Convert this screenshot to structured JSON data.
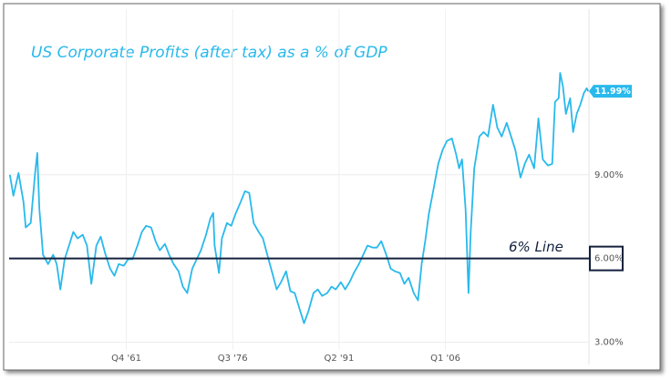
{
  "chart_data": {
    "type": "line",
    "title": "US Corporate Profits (after tax) as a % of GDP",
    "color": "#29b9ec",
    "x": [
      1945.6,
      1946.1,
      1946.8,
      1947.5,
      1947.8,
      1948.5,
      1949.1,
      1949.4,
      1949.7,
      1950.2,
      1950.9,
      1951.6,
      1952.1,
      1952.6,
      1953.2,
      1953.8,
      1954.4,
      1955.0,
      1955.7,
      1956.3,
      1956.9,
      1957.6,
      1958.2,
      1958.8,
      1959.5,
      1960.1,
      1960.7,
      1961.4,
      1962.0,
      1962.6,
      1963.3,
      1963.9,
      1964.5,
      1965.2,
      1965.8,
      1966.4,
      1967.1,
      1967.7,
      1968.3,
      1969.0,
      1969.6,
      1970.2,
      1970.9,
      1971.5,
      1972.1,
      1972.8,
      1973.4,
      1973.8,
      1974.0,
      1974.6,
      1975.0,
      1975.7,
      1976.3,
      1976.9,
      1977.6,
      1978.2,
      1978.8,
      1979.4,
      1980.1,
      1980.7,
      1981.3,
      1982.0,
      1982.6,
      1983.2,
      1983.9,
      1984.5,
      1985.1,
      1985.8,
      1986.4,
      1987.0,
      1987.7,
      1988.3,
      1988.9,
      1989.6,
      1990.2,
      1990.8,
      1991.5,
      1992.1,
      1992.7,
      1993.3,
      1994.0,
      1994.6,
      1995.2,
      1995.9,
      1996.5,
      1997.1,
      1997.8,
      1998.4,
      1999.0,
      1999.7,
      2000.3,
      2000.9,
      2001.6,
      2002.2,
      2002.7,
      2003.2,
      2003.7,
      2004.3,
      2005.0,
      2005.6,
      2006.2,
      2006.9,
      2007.5,
      2007.9,
      2008.3,
      2008.8,
      2009.2,
      2009.5,
      2010.0,
      2010.7,
      2011.3,
      2011.9,
      2012.6,
      2013.2,
      2013.8,
      2014.5,
      2015.1,
      2015.7,
      2016.4,
      2017.0,
      2017.6,
      2018.3,
      2018.9,
      2019.5,
      2020.2,
      2020.8,
      2021.2,
      2021.7,
      2021.9,
      2022.3,
      2022.7,
      2023.3,
      2023.7,
      2024.2,
      2024.7,
      2025.2,
      2025.6,
      2025.8
    ],
    "values": [
      9.0,
      8.25,
      9.06,
      8.02,
      7.11,
      7.27,
      9.06,
      9.78,
      7.76,
      6.13,
      5.8,
      6.13,
      5.8,
      4.89,
      5.97,
      6.46,
      6.95,
      6.72,
      6.85,
      6.46,
      5.09,
      6.46,
      6.78,
      6.2,
      5.64,
      5.38,
      5.8,
      5.74,
      5.97,
      5.97,
      6.46,
      6.95,
      7.17,
      7.11,
      6.62,
      6.29,
      6.52,
      6.13,
      5.8,
      5.54,
      4.99,
      4.76,
      5.64,
      5.97,
      6.29,
      6.85,
      7.43,
      7.63,
      6.46,
      5.48,
      6.72,
      7.27,
      7.17,
      7.6,
      8.02,
      8.41,
      8.35,
      7.27,
      6.95,
      6.72,
      6.13,
      5.48,
      4.89,
      5.15,
      5.54,
      4.83,
      4.76,
      4.17,
      3.68,
      4.11,
      4.76,
      4.89,
      4.66,
      4.76,
      4.99,
      4.89,
      5.15,
      4.89,
      5.15,
      5.48,
      5.8,
      6.13,
      6.46,
      6.39,
      6.39,
      6.62,
      6.13,
      5.64,
      5.54,
      5.48,
      5.09,
      5.31,
      4.76,
      4.5,
      5.8,
      6.62,
      7.6,
      8.41,
      9.39,
      9.88,
      10.21,
      10.3,
      9.72,
      9.23,
      9.55,
      7.76,
      4.76,
      6.95,
      9.23,
      10.37,
      10.53,
      10.37,
      11.51,
      10.69,
      10.37,
      10.86,
      10.37,
      9.88,
      8.9,
      9.39,
      9.72,
      9.23,
      11.02,
      9.55,
      9.33,
      9.39,
      11.61,
      11.74,
      12.65,
      12.16,
      11.18,
      11.74,
      10.53,
      11.18,
      11.51,
      11.93,
      12.1,
      11.99
    ],
    "xlim": [
      1945.5,
      2025.9
    ],
    "xticks": [
      {
        "value": 1961.75,
        "label": "Q4 '61"
      },
      {
        "value": 1976.5,
        "label": "Q3 '76"
      },
      {
        "value": 1991.25,
        "label": "Q2 '91"
      },
      {
        "value": 2006.0,
        "label": "Q1 '06"
      }
    ],
    "ylim": [
      2.2,
      15.0
    ],
    "yticks": [
      {
        "value": 3,
        "label": "3.00%"
      },
      {
        "value": 6,
        "label": "6.00%"
      },
      {
        "value": 9,
        "label": "9.00%"
      }
    ],
    "grid": true,
    "annotations": [
      {
        "text": "11.99%",
        "value": 11.99
      },
      {
        "text": "6% Line",
        "value": 6
      }
    ]
  }
}
